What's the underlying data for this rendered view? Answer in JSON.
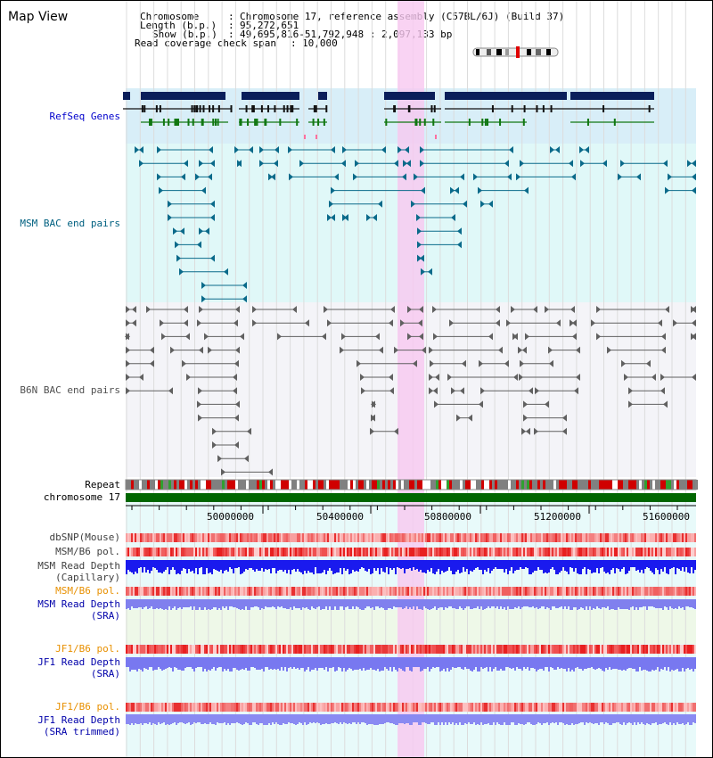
{
  "title": "Map View",
  "info": {
    "chromosome_key": "Chromosome",
    "chromosome_val": "Chromosome 17, reference assembly (C57BL/6J) (Build 37)",
    "length_key": "Length (b.p.)",
    "length_val": "95,272,651",
    "show_key": "Show (b.p.)",
    "show_val": "49,695,816-51,792,948 : 2,097,133 bp",
    "coverage_key": "Read coverage check span",
    "coverage_val": "10,000"
  },
  "tracks": {
    "refseq": "RefSeq Genes",
    "msm_bac": "MSM BAC end pairs",
    "b6n_bac": "B6N BAC end pairs",
    "repeat": "Repeat",
    "chromosome": "chromosome 17",
    "dbsnp": "dbSNP(Mouse)",
    "msm_b6_pol": "MSM/B6 pol.",
    "msm_depth_cap_1": "MSM Read Depth",
    "msm_depth_cap_2": "(Capillary)",
    "msm_b6_pol_2": "MSM/B6 pol.",
    "msm_depth_sra_1": "MSM Read Depth",
    "msm_depth_sra_2": "(SRA)",
    "jf1_b6_pol": "JF1/B6 pol.",
    "jf1_depth_sra_1": "JF1 Read Depth",
    "jf1_depth_sra_2": "(SRA)",
    "jf1_b6_pol_2": "JF1/B6 pol.",
    "jf1_depth_trim_1": "JF1 Read Depth",
    "jf1_depth_trim_2": "(SRA trimmed)"
  },
  "axis": {
    "ticks": [
      "50000000",
      "50400000",
      "50800000",
      "51200000",
      "51600000"
    ]
  },
  "colors": {
    "refseq_label": "#0000cc",
    "msm_label": "#006080",
    "b6n_label": "#505050",
    "orange_label": "#e89000",
    "blue_label": "#0000aa",
    "highlight": "#f8c8f0",
    "refseq_bg": "#d8eef8",
    "msm_bg": "#e0f8f8",
    "chrom_green": "#006600"
  }
}
